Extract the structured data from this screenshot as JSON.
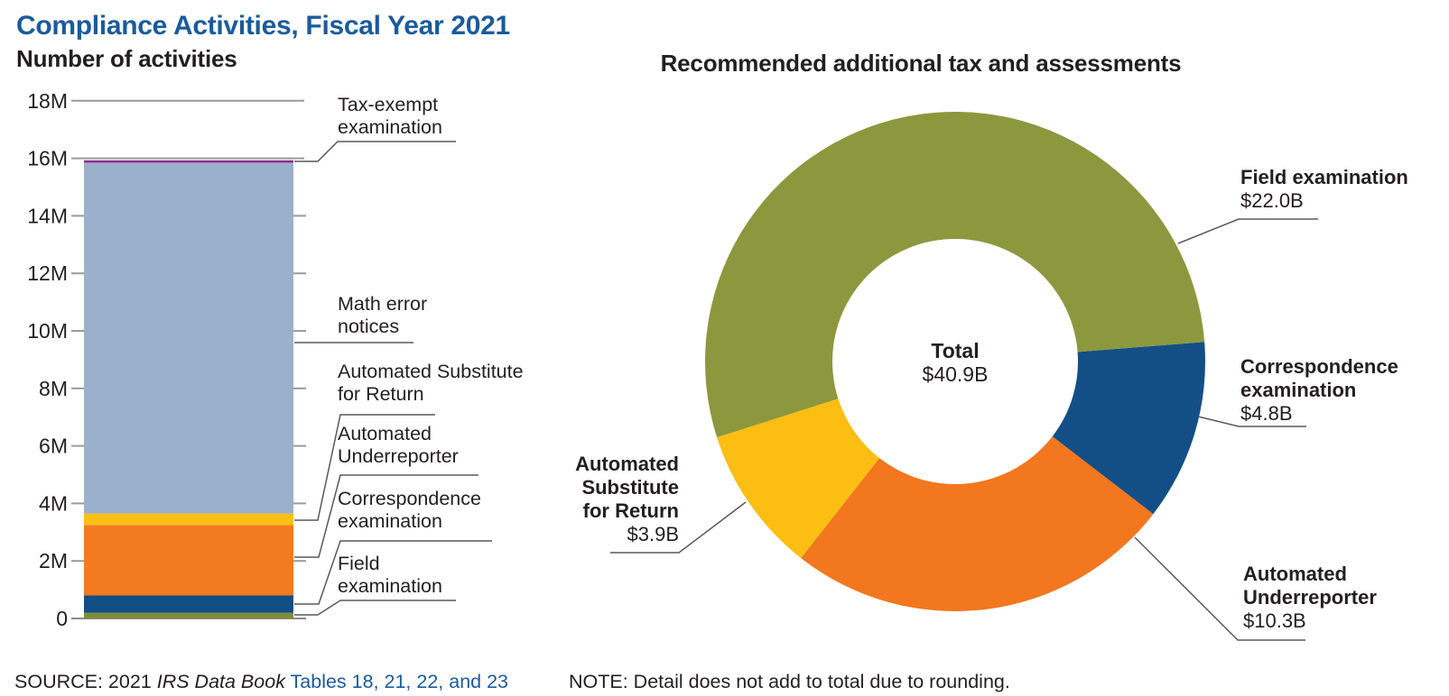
{
  "page": {
    "title": "Compliance Activities, Fiscal Year 2021",
    "source": {
      "prefix": "SOURCE: 2021 ",
      "publication": "IRS Data Book",
      "tables_link": " Tables 18, 21, 22, and 23"
    },
    "note": "NOTE: Detail does not add to total due to rounding."
  },
  "colors": {
    "title_blue": "#1A5B9C",
    "text_dark": "#231F20",
    "gridline_gray": "#9B9B9B",
    "axis_baseline_gray": "#8C8C8C",
    "leader_line": "#58595B",
    "bar_field_olive": "#808C37",
    "bar_correspondence_blue": "#114E84",
    "bar_underreporter_orange": "#F27A20",
    "bar_substitute_yellow": "#FCBF15",
    "bar_math_error_steel": "#9AB0CC",
    "bar_tax_exempt_purple": "#8A2A8B",
    "donut_field_olive": "#8C983E",
    "donut_correspondence_blue": "#134F86",
    "donut_underreporter_orange": "#F2771E",
    "donut_substitute_yellow": "#FCBE13"
  },
  "chart_data": [
    {
      "type": "bar",
      "title": "Number of activities",
      "stacked": true,
      "units": "millions of activities",
      "ylim": [
        0,
        18
      ],
      "grid": "ticks with full gridlines at 16M and 18M",
      "y_ticks": [
        {
          "label": "18M",
          "value": 18
        },
        {
          "label": "16M",
          "value": 16
        },
        {
          "label": "14M",
          "value": 14
        },
        {
          "label": "12M",
          "value": 12
        },
        {
          "label": "10M",
          "value": 10
        },
        {
          "label": "8M",
          "value": 8
        },
        {
          "label": "6M",
          "value": 6
        },
        {
          "label": "4M",
          "value": 4
        },
        {
          "label": "2M",
          "value": 2
        },
        {
          "label": "0",
          "value": 0
        }
      ],
      "segments_bottom_to_top": [
        {
          "key": "field_examination",
          "label": "Field\nexamination",
          "value_millions": 0.2,
          "color": "#808C37"
        },
        {
          "key": "correspondence_examination",
          "label": "Correspondence\nexamination",
          "value_millions": 0.6,
          "color": "#114E84"
        },
        {
          "key": "automated_underreporter",
          "label": "Automated\nUnderreporter",
          "value_millions": 2.45,
          "color": "#F27A20"
        },
        {
          "key": "automated_substitute_for_return",
          "label": "Automated Substitute\nfor Return",
          "value_millions": 0.4,
          "color": "#FCBF15"
        },
        {
          "key": "math_error_notices",
          "label": "Math error\nnotices",
          "value_millions": 12.2,
          "color": "#9AB0CC"
        },
        {
          "key": "tax_exempt_examination",
          "label": "Tax-exempt\nexamination",
          "value_millions": 0.08,
          "color": "#8A2A8B"
        }
      ]
    },
    {
      "type": "pie",
      "subtype": "donut",
      "title": "Recommended additional tax and assessments",
      "center_label": {
        "title": "Total",
        "value": "$40.9B"
      },
      "legend_position": "callout labels around donut",
      "slices": [
        {
          "key": "field_examination",
          "label": "Field examination",
          "value_label": "$22.0B",
          "value_billions": 22.0,
          "color": "#8C983E"
        },
        {
          "key": "correspondence_examination",
          "label": "Correspondence\nexamination",
          "value_label": "$4.8B",
          "value_billions": 4.8,
          "color": "#134F86"
        },
        {
          "key": "automated_underreporter",
          "label": "Automated\nUnderreporter",
          "value_label": "$10.3B",
          "value_billions": 10.3,
          "color": "#F2771E"
        },
        {
          "key": "automated_substitute_for_return",
          "label": "Automated\nSubstitute\nfor Return",
          "value_label": "$3.9B",
          "value_billions": 3.9,
          "color": "#FCBE13"
        }
      ],
      "draw_order_clockwise": [
        "correspondence_examination",
        "automated_underreporter",
        "automated_substitute_for_return",
        "field_examination"
      ],
      "start_angle_deg_math": 4.5
    }
  ]
}
